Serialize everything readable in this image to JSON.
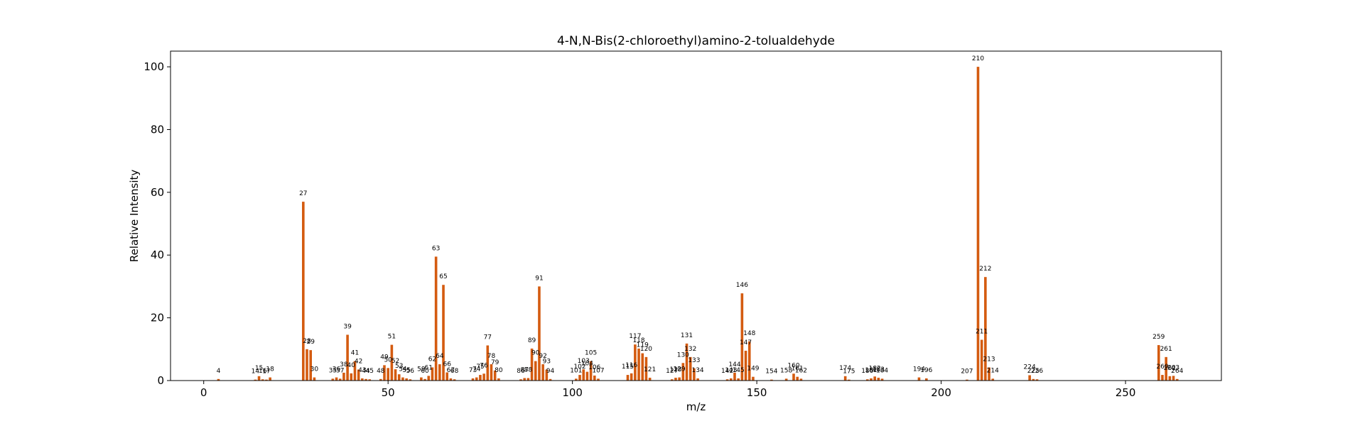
{
  "chart_data": {
    "type": "bar",
    "title": "4-N,N-Bis(2-chloroethyl)amino-2-tolualdehyde",
    "xlabel": "m/z",
    "ylabel": "Relative Intensity",
    "xlim": [
      -9,
      276
    ],
    "ylim": [
      0,
      105
    ],
    "xticks": [
      0,
      50,
      100,
      150,
      200,
      250
    ],
    "yticks": [
      0,
      20,
      40,
      60,
      80,
      100
    ],
    "grid": false,
    "bar_color": "#d45b10",
    "peaks": [
      {
        "mz": 4,
        "intensity": 0.5
      },
      {
        "mz": 14,
        "intensity": 0.3
      },
      {
        "mz": 15,
        "intensity": 1.4
      },
      {
        "mz": 16,
        "intensity": 0.4
      },
      {
        "mz": 17,
        "intensity": 0.3
      },
      {
        "mz": 18,
        "intensity": 1.0
      },
      {
        "mz": 27,
        "intensity": 57
      },
      {
        "mz": 28,
        "intensity": 10
      },
      {
        "mz": 29,
        "intensity": 9.7
      },
      {
        "mz": 30,
        "intensity": 1.0
      },
      {
        "mz": 35,
        "intensity": 0.6
      },
      {
        "mz": 36,
        "intensity": 1.0
      },
      {
        "mz": 37,
        "intensity": 0.6
      },
      {
        "mz": 38,
        "intensity": 2.5
      },
      {
        "mz": 39,
        "intensity": 14.6
      },
      {
        "mz": 40,
        "intensity": 2.3
      },
      {
        "mz": 41,
        "intensity": 6.2
      },
      {
        "mz": 42,
        "intensity": 3.5
      },
      {
        "mz": 43,
        "intensity": 0.7
      },
      {
        "mz": 44,
        "intensity": 0.5
      },
      {
        "mz": 45,
        "intensity": 0.4
      },
      {
        "mz": 48,
        "intensity": 0.5
      },
      {
        "mz": 49,
        "intensity": 4.9
      },
      {
        "mz": 50,
        "intensity": 4.0
      },
      {
        "mz": 51,
        "intensity": 11.4
      },
      {
        "mz": 52,
        "intensity": 3.6
      },
      {
        "mz": 53,
        "intensity": 2.0
      },
      {
        "mz": 54,
        "intensity": 1.0
      },
      {
        "mz": 55,
        "intensity": 0.7
      },
      {
        "mz": 56,
        "intensity": 0.4
      },
      {
        "mz": 59,
        "intensity": 1.0
      },
      {
        "mz": 60,
        "intensity": 0.5
      },
      {
        "mz": 61,
        "intensity": 1.5
      },
      {
        "mz": 62,
        "intensity": 4.2
      },
      {
        "mz": 63,
        "intensity": 39.5
      },
      {
        "mz": 64,
        "intensity": 5.2
      },
      {
        "mz": 65,
        "intensity": 30.5
      },
      {
        "mz": 66,
        "intensity": 2.6
      },
      {
        "mz": 67,
        "intensity": 0.7
      },
      {
        "mz": 68,
        "intensity": 0.4
      },
      {
        "mz": 73,
        "intensity": 0.7
      },
      {
        "mz": 74,
        "intensity": 1.0
      },
      {
        "mz": 75,
        "intensity": 1.8
      },
      {
        "mz": 76,
        "intensity": 2.2
      },
      {
        "mz": 77,
        "intensity": 11.2
      },
      {
        "mz": 78,
        "intensity": 5.2
      },
      {
        "mz": 79,
        "intensity": 3.2
      },
      {
        "mz": 80,
        "intensity": 0.7
      },
      {
        "mz": 86,
        "intensity": 0.4
      },
      {
        "mz": 87,
        "intensity": 0.8
      },
      {
        "mz": 88,
        "intensity": 0.8
      },
      {
        "mz": 89,
        "intensity": 10.2
      },
      {
        "mz": 90,
        "intensity": 6.2
      },
      {
        "mz": 91,
        "intensity": 30
      },
      {
        "mz": 92,
        "intensity": 5.2
      },
      {
        "mz": 93,
        "intensity": 3.5
      },
      {
        "mz": 94,
        "intensity": 0.5
      },
      {
        "mz": 101,
        "intensity": 0.6
      },
      {
        "mz": 102,
        "intensity": 1.8
      },
      {
        "mz": 103,
        "intensity": 3.6
      },
      {
        "mz": 104,
        "intensity": 2.8
      },
      {
        "mz": 105,
        "intensity": 6.2
      },
      {
        "mz": 106,
        "intensity": 1.6
      },
      {
        "mz": 107,
        "intensity": 0.6
      },
      {
        "mz": 115,
        "intensity": 1.8
      },
      {
        "mz": 116,
        "intensity": 2.3
      },
      {
        "mz": 117,
        "intensity": 11.5
      },
      {
        "mz": 118,
        "intensity": 10.2
      },
      {
        "mz": 119,
        "intensity": 8.7
      },
      {
        "mz": 120,
        "intensity": 7.5
      },
      {
        "mz": 121,
        "intensity": 0.9
      },
      {
        "mz": 127,
        "intensity": 0.4
      },
      {
        "mz": 128,
        "intensity": 0.9
      },
      {
        "mz": 129,
        "intensity": 1.0
      },
      {
        "mz": 130,
        "intensity": 5.6
      },
      {
        "mz": 131,
        "intensity": 11.8
      },
      {
        "mz": 132,
        "intensity": 7.5
      },
      {
        "mz": 133,
        "intensity": 3.9
      },
      {
        "mz": 134,
        "intensity": 0.7
      },
      {
        "mz": 142,
        "intensity": 0.4
      },
      {
        "mz": 143,
        "intensity": 0.7
      },
      {
        "mz": 144,
        "intensity": 2.5
      },
      {
        "mz": 145,
        "intensity": 0.7
      },
      {
        "mz": 146,
        "intensity": 27.8
      },
      {
        "mz": 147,
        "intensity": 9.5
      },
      {
        "mz": 148,
        "intensity": 12.5
      },
      {
        "mz": 149,
        "intensity": 1.2
      },
      {
        "mz": 154,
        "intensity": 0.3
      },
      {
        "mz": 158,
        "intensity": 0.6
      },
      {
        "mz": 160,
        "intensity": 2.2
      },
      {
        "mz": 161,
        "intensity": 1.2
      },
      {
        "mz": 162,
        "intensity": 0.6
      },
      {
        "mz": 174,
        "intensity": 1.4
      },
      {
        "mz": 175,
        "intensity": 0.3
      },
      {
        "mz": 180,
        "intensity": 0.4
      },
      {
        "mz": 181,
        "intensity": 0.7
      },
      {
        "mz": 182,
        "intensity": 1.3
      },
      {
        "mz": 183,
        "intensity": 0.9
      },
      {
        "mz": 184,
        "intensity": 0.6
      },
      {
        "mz": 194,
        "intensity": 1.0
      },
      {
        "mz": 196,
        "intensity": 0.7
      },
      {
        "mz": 207,
        "intensity": 0.3
      },
      {
        "mz": 210,
        "intensity": 100
      },
      {
        "mz": 211,
        "intensity": 13
      },
      {
        "mz": 212,
        "intensity": 33
      },
      {
        "mz": 213,
        "intensity": 4.2
      },
      {
        "mz": 214,
        "intensity": 0.6
      },
      {
        "mz": 224,
        "intensity": 1.7
      },
      {
        "mz": 225,
        "intensity": 0.5
      },
      {
        "mz": 226,
        "intensity": 0.4
      },
      {
        "mz": 259,
        "intensity": 11.3
      },
      {
        "mz": 260,
        "intensity": 1.8
      },
      {
        "mz": 261,
        "intensity": 7.5
      },
      {
        "mz": 262,
        "intensity": 1.4
      },
      {
        "mz": 263,
        "intensity": 1.5
      },
      {
        "mz": 264,
        "intensity": 0.5
      }
    ]
  }
}
